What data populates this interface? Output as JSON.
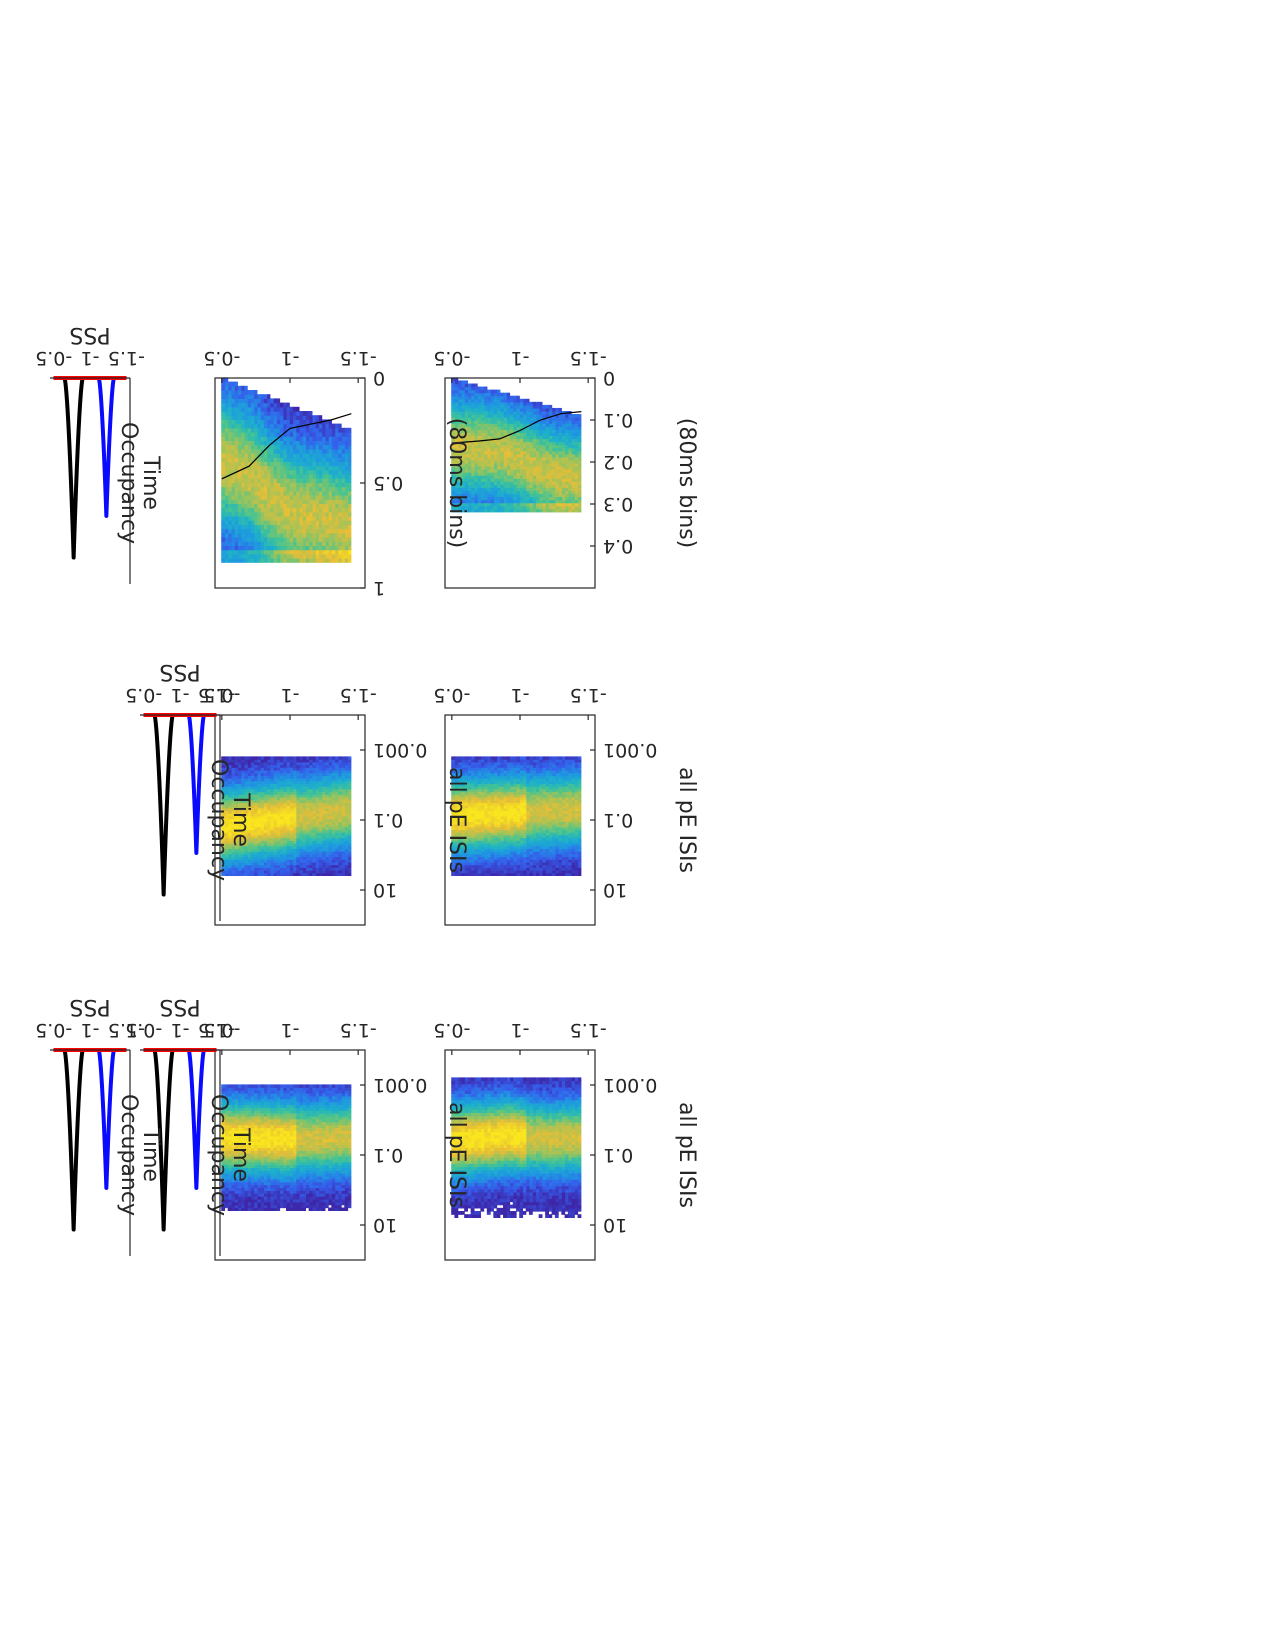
{
  "colors": {
    "background": "#ffffff",
    "axes": "#262626",
    "heatmap_low": "#3e26a8",
    "heatmap_mid": "#1eb1d4",
    "heatmap_high": "#f9d23c",
    "curve_black": "#000000",
    "curve_blue": "#0a0aff",
    "curve_red": "#ff0000"
  },
  "chart_data": [
    {
      "id": "h1",
      "type": "heatmap",
      "xlabel": "",
      "ylabel": "all pE ISIs",
      "xticks": [
        "-1.5",
        "-1",
        "-0.5"
      ],
      "yticks": [
        "0.001",
        "0.1",
        "10"
      ],
      "xlim": [
        -1.55,
        -0.45
      ],
      "ylim": [
        -4,
        2
      ],
      "yscale": "log",
      "band": [
        [
          -1.45,
          -0.9
        ],
        [
          -1.2,
          -0.95
        ],
        [
          -0.9,
          -0.85
        ],
        [
          -0.8,
          -0.9
        ],
        [
          -0.5,
          -1.0
        ]
      ],
      "extent_x": [
        -1.45,
        -0.5
      ],
      "extent_y": [
        -3.2,
        0.8
      ]
    },
    {
      "id": "h2",
      "type": "heatmap",
      "xlabel": "",
      "ylabel": "all pE ISIs",
      "xticks": [
        "-1.5",
        "-1",
        "-0.5"
      ],
      "yticks": [
        "0.001",
        "0.1",
        "10"
      ],
      "xlim": [
        -1.55,
        -0.45
      ],
      "ylim": [
        -4,
        2
      ],
      "yscale": "log",
      "band": [
        [
          -1.45,
          -0.9
        ],
        [
          -1.0,
          -0.95
        ],
        [
          -0.5,
          -0.9
        ]
      ],
      "extent_x": [
        -1.45,
        -0.5
      ],
      "extent_y": [
        -3.0,
        0.6
      ]
    },
    {
      "id": "h3",
      "type": "heatmap",
      "xlabel": "",
      "ylabel": "all pE ISIs",
      "xticks": [
        "-1.5",
        "-1",
        "-0.5"
      ],
      "yticks": [
        "0.001",
        "0.1",
        "10"
      ],
      "xlim": [
        -1.55,
        -0.45
      ],
      "ylim": [
        -4,
        2
      ],
      "yscale": "log",
      "band": [
        [
          -1.45,
          -0.9
        ],
        [
          -0.5,
          -1.1
        ]
      ],
      "extent_x": [
        -1.45,
        -0.5
      ],
      "extent_y": [
        -2.8,
        0.6
      ]
    },
    {
      "id": "h4",
      "type": "heatmap",
      "xlabel": "",
      "ylabel": "all pE ISIs",
      "xticks": [
        "-1.5",
        "-1",
        "-0.5"
      ],
      "yticks": [
        "0.001",
        "0.1",
        "10"
      ],
      "xlim": [
        -1.55,
        -0.45
      ],
      "ylim": [
        -4,
        2
      ],
      "yscale": "log",
      "band": [
        [
          -1.45,
          -0.9
        ],
        [
          -0.5,
          -1.4
        ]
      ],
      "extent_x": [
        -1.45,
        -0.5
      ],
      "extent_y": [
        -2.8,
        0.6
      ]
    },
    {
      "id": "h5",
      "type": "heatmap",
      "xlabel": "",
      "ylabel": "(80ms bins)",
      "xticks": [
        "-1.5",
        "-1",
        "-0.5"
      ],
      "yticks": [
        "0",
        "0.1",
        "0.2",
        "0.3",
        "0.4"
      ],
      "xlim": [
        -1.55,
        -0.45
      ],
      "ylim": [
        0,
        0.5
      ],
      "yscale": "linear",
      "mean_line": {
        "x": [
          -1.45,
          -1.3,
          -1.15,
          -1.0,
          -0.85,
          -0.7,
          -0.5
        ],
        "y": [
          0.08,
          0.085,
          0.1,
          0.125,
          0.145,
          0.15,
          0.155
        ]
      },
      "extent_x": [
        -1.45,
        -0.5
      ],
      "extent_y": [
        0,
        0.32
      ]
    },
    {
      "id": "h6",
      "type": "heatmap",
      "xlabel": "",
      "ylabel": "(80ms bins)",
      "xticks": [
        "-1.5",
        "-1",
        "-0.5"
      ],
      "yticks": [
        "0",
        "0.5",
        "1"
      ],
      "xlim": [
        -1.55,
        -0.45
      ],
      "ylim": [
        0,
        1
      ],
      "yscale": "linear",
      "mean_line": {
        "x": [
          -1.45,
          -1.3,
          -1.15,
          -1.0,
          -0.85,
          -0.7,
          -0.5
        ],
        "y": [
          0.17,
          0.2,
          0.22,
          0.24,
          0.32,
          0.42,
          0.48
        ]
      },
      "extent_x": [
        -1.45,
        -0.5
      ],
      "extent_y": [
        0,
        0.88
      ]
    },
    {
      "id": "t1",
      "type": "line",
      "xlabel": "PSS",
      "ylabel": "Occupancy",
      "xticks": [
        "-1.5",
        "-1",
        "-0.5"
      ],
      "xlim": [
        -1.55,
        -0.45
      ],
      "ylim": [
        0,
        1
      ],
      "series": [
        {
          "color": "black",
          "center": -0.775,
          "width": 0.12,
          "height": 0.95
        },
        {
          "color": "blue",
          "center": -1.225,
          "width": 0.1,
          "height": 0.73
        },
        {
          "color": "red",
          "center": 0,
          "width": 1,
          "height": 0
        }
      ]
    },
    {
      "id": "t2",
      "type": "line",
      "xlabel": "PSS",
      "ylabel": "Occupancy",
      "xticks": [
        "-1.5",
        "-1",
        "-0.5"
      ],
      "xlim": [
        -1.55,
        -0.45
      ],
      "ylim": [
        0,
        1
      ],
      "series": [
        {
          "color": "black",
          "center": -0.775,
          "width": 0.12,
          "height": 0.95
        },
        {
          "color": "blue",
          "center": -1.225,
          "width": 0.1,
          "height": 0.73
        },
        {
          "color": "red",
          "center": 0,
          "width": 1,
          "height": 0
        }
      ]
    },
    {
      "id": "t3",
      "type": "line",
      "xlabel": "PSS",
      "ylabel": "Occupancy",
      "xticks": [
        "-1.5",
        "-1",
        "-0.5"
      ],
      "xlim": [
        -1.55,
        -0.45
      ],
      "ylim": [
        0,
        1
      ],
      "series": [
        {
          "color": "black",
          "center": -0.775,
          "width": 0.12,
          "height": 0.95
        },
        {
          "color": "blue",
          "center": -1.225,
          "width": 0.1,
          "height": 0.73
        },
        {
          "color": "red",
          "center": 0,
          "width": 1,
          "height": 0
        }
      ]
    },
    {
      "id": "t4",
      "type": "line",
      "xlabel": "PSS",
      "ylabel": "Occupancy",
      "xticks": [
        "-1.5",
        "-1",
        "-0.5"
      ],
      "xlim": [
        -1.55,
        -0.45
      ],
      "ylim": [
        0,
        1
      ],
      "series": [
        {
          "color": "black",
          "center": -0.775,
          "width": 0.12,
          "height": 0.95
        },
        {
          "color": "blue",
          "center": -1.225,
          "width": 0.1,
          "height": 0.73
        },
        {
          "color": "red",
          "center": 0,
          "width": 1,
          "height": 0
        }
      ]
    }
  ],
  "labels": {
    "time": "Time",
    "occupancy": "Occupancy",
    "pss": "PSS",
    "all_pe_isis": "all pE ISIs",
    "bins": "(80ms bins)"
  }
}
